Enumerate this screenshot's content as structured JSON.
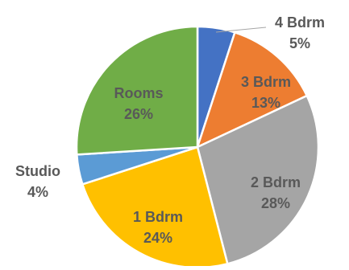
{
  "chart_data": {
    "type": "pie",
    "title": "",
    "start_angle_deg": 0,
    "direction": "clockwise",
    "slices": [
      {
        "label": "4 Bdrm",
        "value": 5,
        "value_label": "5%",
        "color": "#4472C4",
        "label_color": "#595959",
        "label_position": "outside"
      },
      {
        "label": "3 Bdrm",
        "value": 13,
        "value_label": "13%",
        "color": "#ED7D31",
        "label_color": "#595959",
        "label_position": "inside"
      },
      {
        "label": "2 Bdrm",
        "value": 28,
        "value_label": "28%",
        "color": "#A5A5A5",
        "label_color": "#595959",
        "label_position": "inside"
      },
      {
        "label": "1 Bdrm",
        "value": 24,
        "value_label": "24%",
        "color": "#FFC000",
        "label_color": "#595959",
        "label_position": "inside"
      },
      {
        "label": "Studio",
        "value": 4,
        "value_label": "4%",
        "color": "#5B9BD5",
        "label_color": "#595959",
        "label_position": "outside"
      },
      {
        "label": "Rooms",
        "value": 26,
        "value_label": "26%",
        "color": "#70AD47",
        "label_color": "#595959",
        "label_position": "inside"
      }
    ],
    "legend": "none",
    "leader_lines": true
  }
}
